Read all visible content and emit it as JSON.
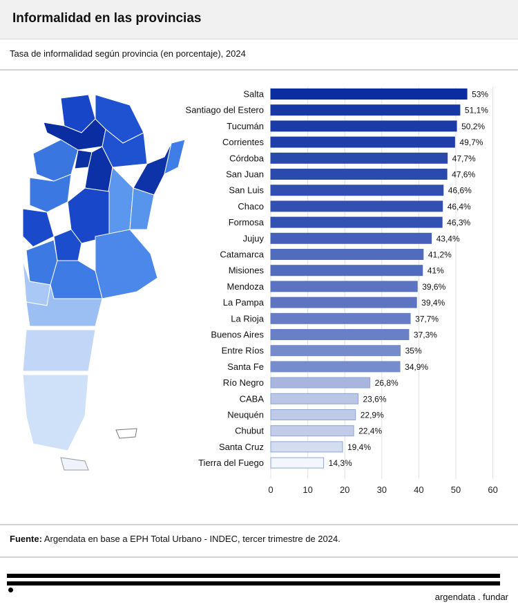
{
  "header": {
    "title": "Informalidad en las provincias"
  },
  "subtitle": "Tasa de informalidad según provincia (en porcentaje), 2024",
  "footer": {
    "source_label": "Fuente:",
    "source_text": " Argendata en base a EPH Total Urbano - INDEC, tercer trimestre de 2024.",
    "brand": "argendata . fundar"
  },
  "chart_data": {
    "type": "bar",
    "orientation": "horizontal",
    "title": "Informalidad en las provincias",
    "subtitle": "Tasa de informalidad según provincia (en porcentaje), 2024",
    "xlim": [
      0,
      60
    ],
    "x_ticks": [
      0,
      10,
      20,
      30,
      40,
      50,
      60
    ],
    "grid": true,
    "color_scale": [
      "#f3f6fc",
      "#0a2ea1"
    ],
    "categories": [
      "Salta",
      "Santiago del Estero",
      "Tucumán",
      "Corrientes",
      "Córdoba",
      "San Juan",
      "San Luis",
      "Chaco",
      "Formosa",
      "Jujuy",
      "Catamarca",
      "Misiones",
      "Mendoza",
      "La Pampa",
      "La Rioja",
      "Buenos Aires",
      "Entre Ríos",
      "Santa Fe",
      "Río Negro",
      "CABA",
      "Neuquén",
      "Chubut",
      "Santa Cruz",
      "Tierra del Fuego"
    ],
    "values": [
      53,
      51.1,
      50.2,
      49.7,
      47.7,
      47.6,
      46.6,
      46.4,
      46.3,
      43.4,
      41.2,
      41,
      39.6,
      39.4,
      37.7,
      37.3,
      35,
      34.9,
      26.8,
      23.6,
      22.9,
      22.4,
      19.4,
      14.3
    ],
    "value_labels": [
      "53%",
      "51,1%",
      "50,2%",
      "49,7%",
      "47,7%",
      "47,6%",
      "46,6%",
      "46,4%",
      "46,3%",
      "43,4%",
      "41,2%",
      "41%",
      "39,6%",
      "39,4%",
      "37,7%",
      "37,3%",
      "35%",
      "34,9%",
      "26,8%",
      "23,6%",
      "22,9%",
      "22,4%",
      "19,4%",
      "14,3%"
    ]
  }
}
